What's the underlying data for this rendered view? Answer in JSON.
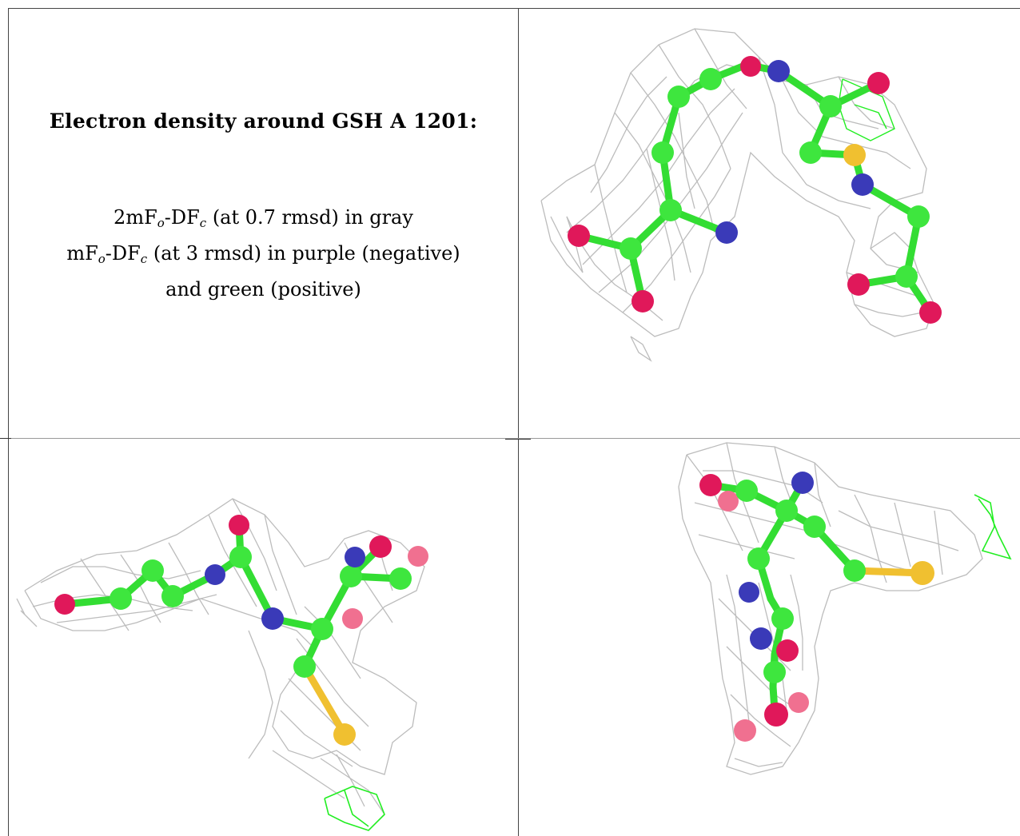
{
  "caption": {
    "title": "Electron density around GSH A 1201:",
    "line1_pre": "2mF",
    "line1_sub1": "o",
    "line1_mid": "-DF",
    "line1_sub2": "c",
    "line1_post": " (at 0.7 rmsd) in gray",
    "line2_pre": "mF",
    "line2_sub1": "o",
    "line2_mid": "-DF",
    "line2_sub2": "c",
    "line2_post": " (at 3 rmsd) in purple (negative)",
    "line3": "and green (positive)"
  },
  "colors": {
    "carbon": "#3ee63e",
    "nitrogen": "#3a3ab8",
    "oxygen": "#e0185a",
    "sulfur": "#f0c030",
    "mesh": "#bcbcbc",
    "positive_density": "#22ee22"
  },
  "views": [
    {
      "name": "view-top-right"
    },
    {
      "name": "view-bottom-left"
    },
    {
      "name": "view-bottom-right"
    }
  ]
}
